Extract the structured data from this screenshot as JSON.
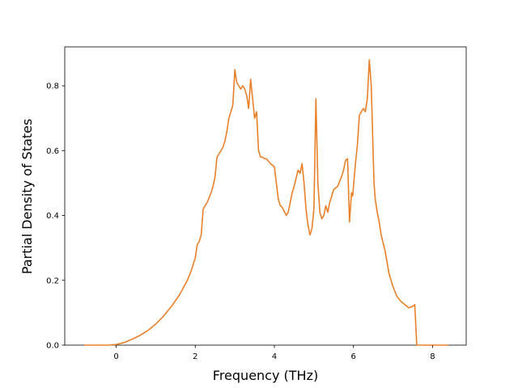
{
  "chart_data": {
    "type": "line",
    "title": "",
    "xlabel": "Frequency (THz)",
    "ylabel": "Partial Density of States",
    "xlim": [
      -1.3,
      8.85
    ],
    "ylim": [
      0.0,
      0.92
    ],
    "xticks": [
      0,
      2,
      4,
      6,
      8
    ],
    "yticks": [
      0.0,
      0.2,
      0.4,
      0.6,
      0.8
    ],
    "xtick_labels": [
      "0",
      "2",
      "4",
      "6",
      "8"
    ],
    "ytick_labels": [
      "0.0",
      "0.2",
      "0.4",
      "0.6",
      "0.8"
    ],
    "grid": false,
    "legend": "none",
    "series": [
      {
        "color": "#e8802a",
        "x": [
          -0.8,
          -0.2,
          0.0,
          0.2,
          0.4,
          0.6,
          0.8,
          1.0,
          1.2,
          1.4,
          1.6,
          1.8,
          1.9,
          1.95,
          2.0,
          2.05,
          2.1,
          2.15,
          2.2,
          2.3,
          2.4,
          2.45,
          2.5,
          2.55,
          2.6,
          2.7,
          2.75,
          2.8,
          2.85,
          2.9,
          2.95,
          3.0,
          3.05,
          3.1,
          3.15,
          3.2,
          3.25,
          3.3,
          3.35,
          3.4,
          3.45,
          3.5,
          3.55,
          3.6,
          3.65,
          3.7,
          3.75,
          3.8,
          3.9,
          4.0,
          4.1,
          4.15,
          4.2,
          4.3,
          4.35,
          4.4,
          4.45,
          4.5,
          4.6,
          4.65,
          4.7,
          4.75,
          4.8,
          4.85,
          4.9,
          4.95,
          5.0,
          5.05,
          5.1,
          5.15,
          5.2,
          5.25,
          5.3,
          5.35,
          5.4,
          5.45,
          5.5,
          5.6,
          5.7,
          5.75,
          5.8,
          5.85,
          5.9,
          5.95,
          5.98,
          6.0,
          6.05,
          6.1,
          6.15,
          6.2,
          6.25,
          6.3,
          6.35,
          6.4,
          6.45,
          6.5,
          6.52,
          6.55,
          6.6,
          6.65,
          6.7,
          6.8,
          6.9,
          7.0,
          7.1,
          7.2,
          7.3,
          7.4,
          7.5,
          7.55,
          7.6,
          7.65,
          7.7,
          8.4
        ],
        "y": [
          0.0,
          0.0,
          0.002,
          0.008,
          0.018,
          0.03,
          0.045,
          0.065,
          0.09,
          0.12,
          0.155,
          0.2,
          0.23,
          0.25,
          0.27,
          0.31,
          0.32,
          0.34,
          0.42,
          0.44,
          0.47,
          0.49,
          0.52,
          0.58,
          0.59,
          0.61,
          0.63,
          0.66,
          0.7,
          0.72,
          0.74,
          0.85,
          0.81,
          0.8,
          0.79,
          0.8,
          0.79,
          0.77,
          0.73,
          0.82,
          0.76,
          0.7,
          0.72,
          0.6,
          0.58,
          0.58,
          0.575,
          0.575,
          0.56,
          0.55,
          0.45,
          0.43,
          0.425,
          0.4,
          0.41,
          0.44,
          0.47,
          0.49,
          0.54,
          0.53,
          0.56,
          0.5,
          0.42,
          0.37,
          0.34,
          0.36,
          0.42,
          0.76,
          0.5,
          0.41,
          0.39,
          0.4,
          0.43,
          0.41,
          0.44,
          0.46,
          0.48,
          0.49,
          0.52,
          0.54,
          0.57,
          0.575,
          0.38,
          0.47,
          0.46,
          0.49,
          0.56,
          0.62,
          0.71,
          0.72,
          0.73,
          0.72,
          0.76,
          0.88,
          0.8,
          0.58,
          0.5,
          0.45,
          0.41,
          0.38,
          0.34,
          0.29,
          0.22,
          0.18,
          0.15,
          0.135,
          0.125,
          0.115,
          0.12,
          0.125,
          0.0,
          0.0,
          0.0,
          0.0
        ]
      }
    ]
  }
}
